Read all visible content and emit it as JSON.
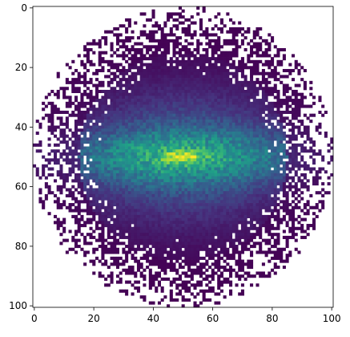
{
  "chart_data": {
    "type": "heatmap",
    "title": "",
    "xlabel": "",
    "ylabel": "",
    "xlim": [
      0,
      100
    ],
    "ylim": [
      100,
      0
    ],
    "grid": false,
    "legend": "none",
    "colormap": "viridis",
    "colormap_colors": [
      "#440154",
      "#46327e",
      "#365c8d",
      "#277f8e",
      "#1fa187",
      "#4ac16d",
      "#a0da39",
      "#fde725"
    ],
    "background_color": "#ffffff",
    "x_ticks": [
      0,
      20,
      40,
      60,
      80,
      100
    ],
    "y_ticks": [
      0,
      20,
      40,
      60,
      80,
      100
    ],
    "x_tick_labels": [
      "0",
      "20",
      "40",
      "60",
      "80",
      "100"
    ],
    "y_tick_labels": [
      "0",
      "20",
      "40",
      "60",
      "80",
      "100"
    ],
    "grid_size": [
      101,
      101
    ],
    "distribution": {
      "shape": "circular-disk",
      "center": [
        50,
        50
      ],
      "radius": 50,
      "peak_value": 1.0,
      "core_sigma": [
        4,
        1.2
      ],
      "disk_sigma": [
        30,
        6
      ],
      "halo_sigma": [
        22,
        14
      ],
      "outer_edge_sparse": true
    }
  }
}
